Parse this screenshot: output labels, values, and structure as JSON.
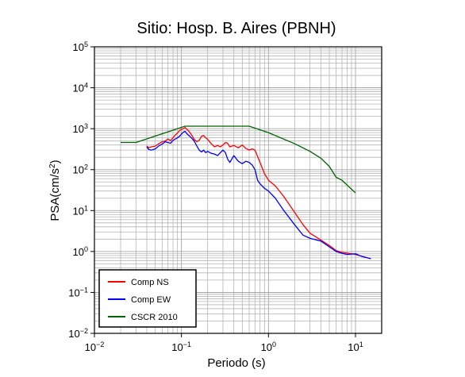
{
  "chart_data": {
    "type": "line",
    "title": "Sitio: Hosp. B. Aires (PBNH)",
    "xlabel": "Periodo (s)",
    "ylabel": "PSA(cm/s2)",
    "xscale": "log",
    "yscale": "log",
    "xlim": [
      0.01,
      20
    ],
    "ylim": [
      0.01,
      100000
    ],
    "grid": true,
    "legend_position": "bottom-left",
    "x_ticks": [
      {
        "base": "10",
        "exp": "−2",
        "value": 0.01
      },
      {
        "base": "10",
        "exp": "−1",
        "value": 0.1
      },
      {
        "base": "10",
        "exp": "0",
        "value": 1
      },
      {
        "base": "10",
        "exp": "1",
        "value": 10
      }
    ],
    "y_ticks": [
      {
        "base": "10",
        "exp": "−2",
        "value": 0.01
      },
      {
        "base": "10",
        "exp": "−1",
        "value": 0.1
      },
      {
        "base": "10",
        "exp": "0",
        "value": 1
      },
      {
        "base": "10",
        "exp": "1",
        "value": 10
      },
      {
        "base": "10",
        "exp": "2",
        "value": 100
      },
      {
        "base": "10",
        "exp": "3",
        "value": 1000
      },
      {
        "base": "10",
        "exp": "4",
        "value": 10000
      },
      {
        "base": "10",
        "exp": "5",
        "value": 100000
      }
    ],
    "series": [
      {
        "name": "Comp NS",
        "color": "#ff0000",
        "points": [
          [
            0.04,
            380
          ],
          [
            0.042,
            340
          ],
          [
            0.045,
            360
          ],
          [
            0.05,
            375
          ],
          [
            0.055,
            430
          ],
          [
            0.06,
            480
          ],
          [
            0.065,
            500
          ],
          [
            0.07,
            560
          ],
          [
            0.075,
            510
          ],
          [
            0.08,
            600
          ],
          [
            0.085,
            700
          ],
          [
            0.09,
            780
          ],
          [
            0.095,
            900
          ],
          [
            0.1,
            960
          ],
          [
            0.105,
            1000
          ],
          [
            0.11,
            1070
          ],
          [
            0.115,
            980
          ],
          [
            0.12,
            900
          ],
          [
            0.13,
            720
          ],
          [
            0.14,
            550
          ],
          [
            0.15,
            480
          ],
          [
            0.16,
            520
          ],
          [
            0.17,
            650
          ],
          [
            0.18,
            680
          ],
          [
            0.19,
            600
          ],
          [
            0.2,
            550
          ],
          [
            0.22,
            430
          ],
          [
            0.24,
            360
          ],
          [
            0.26,
            390
          ],
          [
            0.28,
            360
          ],
          [
            0.3,
            400
          ],
          [
            0.32,
            460
          ],
          [
            0.34,
            440
          ],
          [
            0.36,
            360
          ],
          [
            0.4,
            390
          ],
          [
            0.45,
            340
          ],
          [
            0.5,
            400
          ],
          [
            0.55,
            330
          ],
          [
            0.6,
            300
          ],
          [
            0.65,
            320
          ],
          [
            0.7,
            300
          ],
          [
            0.75,
            210
          ],
          [
            0.8,
            150
          ],
          [
            0.9,
            80
          ],
          [
            1.0,
            55
          ],
          [
            1.2,
            40
          ],
          [
            1.5,
            22
          ],
          [
            2.0,
            9
          ],
          [
            2.5,
            4.5
          ],
          [
            3.0,
            2.8
          ],
          [
            4.0,
            1.9
          ],
          [
            5.0,
            1.4
          ],
          [
            6.0,
            1.05
          ],
          [
            7.0,
            0.95
          ],
          [
            8.0,
            0.92
          ],
          [
            10.0,
            0.85
          ],
          [
            12.0,
            0.75
          ],
          [
            15.0,
            0.67
          ]
        ]
      },
      {
        "name": "Comp EW",
        "color": "#0000ff",
        "points": [
          [
            0.04,
            360
          ],
          [
            0.042,
            310
          ],
          [
            0.045,
            300
          ],
          [
            0.05,
            320
          ],
          [
            0.055,
            380
          ],
          [
            0.06,
            420
          ],
          [
            0.065,
            480
          ],
          [
            0.07,
            460
          ],
          [
            0.075,
            440
          ],
          [
            0.08,
            520
          ],
          [
            0.085,
            560
          ],
          [
            0.09,
            600
          ],
          [
            0.095,
            650
          ],
          [
            0.1,
            740
          ],
          [
            0.105,
            820
          ],
          [
            0.11,
            860
          ],
          [
            0.115,
            760
          ],
          [
            0.12,
            700
          ],
          [
            0.13,
            600
          ],
          [
            0.14,
            500
          ],
          [
            0.15,
            380
          ],
          [
            0.16,
            300
          ],
          [
            0.17,
            270
          ],
          [
            0.18,
            300
          ],
          [
            0.19,
            260
          ],
          [
            0.2,
            280
          ],
          [
            0.22,
            250
          ],
          [
            0.24,
            240
          ],
          [
            0.26,
            220
          ],
          [
            0.28,
            260
          ],
          [
            0.3,
            300
          ],
          [
            0.32,
            260
          ],
          [
            0.34,
            180
          ],
          [
            0.36,
            150
          ],
          [
            0.4,
            220
          ],
          [
            0.45,
            160
          ],
          [
            0.5,
            140
          ],
          [
            0.55,
            160
          ],
          [
            0.6,
            150
          ],
          [
            0.65,
            130
          ],
          [
            0.7,
            100
          ],
          [
            0.75,
            55
          ],
          [
            0.8,
            45
          ],
          [
            0.9,
            35
          ],
          [
            1.0,
            30
          ],
          [
            1.2,
            20
          ],
          [
            1.5,
            10
          ],
          [
            2.0,
            4.5
          ],
          [
            2.5,
            2.5
          ],
          [
            3.0,
            2.1
          ],
          [
            4.0,
            1.8
          ],
          [
            5.0,
            1.3
          ],
          [
            6.0,
            1.0
          ],
          [
            7.0,
            0.9
          ],
          [
            8.0,
            0.85
          ],
          [
            10.0,
            0.88
          ],
          [
            12.0,
            0.75
          ],
          [
            15.0,
            0.67
          ]
        ]
      },
      {
        "name": "CSCR 2010",
        "color": "#006400",
        "points": [
          [
            0.02,
            460
          ],
          [
            0.03,
            460
          ],
          [
            0.11,
            1150
          ],
          [
            0.6,
            1150
          ],
          [
            1.0,
            800
          ],
          [
            2.0,
            430
          ],
          [
            3.0,
            280
          ],
          [
            4.0,
            190
          ],
          [
            5.0,
            120
          ],
          [
            6.0,
            65
          ],
          [
            7.0,
            55
          ],
          [
            8.0,
            42
          ],
          [
            10.0,
            27
          ]
        ]
      }
    ]
  }
}
